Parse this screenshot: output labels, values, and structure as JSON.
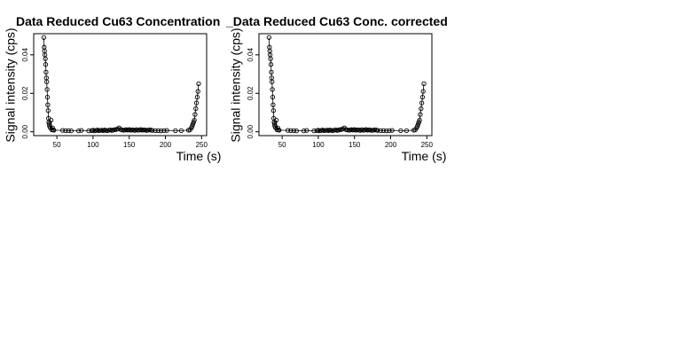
{
  "chart_data": [
    {
      "type": "scatter",
      "title": "Data Reduced Cu63 Concentration",
      "xlabel": "Time (s)",
      "ylabel": "Signal intensity (cps)",
      "xticks": [
        50,
        100,
        150,
        200,
        250
      ],
      "yticks": [
        0.0,
        0.02,
        0.04
      ],
      "ytick_labels": [
        "0.00",
        "0.02",
        "0.04"
      ],
      "xlim": [
        18,
        257
      ],
      "ylim": [
        -0.002,
        0.051
      ],
      "grid": false,
      "legend": "none",
      "x": [
        32,
        32.5,
        33,
        33.5,
        34,
        34.5,
        35,
        35.5,
        36,
        36.5,
        37,
        37.5,
        38,
        38.5,
        39,
        39.5,
        40,
        41,
        42,
        43,
        44,
        45,
        46,
        58,
        62,
        66,
        70,
        80,
        84,
        94,
        98,
        100,
        102,
        104,
        106,
        108,
        110,
        112,
        114,
        116,
        118,
        120,
        122,
        124,
        126,
        128,
        130,
        132,
        134,
        136,
        138,
        140,
        142,
        144,
        146,
        148,
        150,
        152,
        154,
        156,
        158,
        160,
        162,
        164,
        166,
        168,
        170,
        172,
        174,
        176,
        178,
        180,
        182,
        186,
        190,
        194,
        198,
        202,
        214,
        222,
        232,
        234,
        236,
        237,
        238,
        239,
        240,
        241,
        242,
        243,
        244,
        245,
        246
      ],
      "y": [
        0.049,
        0.044,
        0.042,
        0.04,
        0.038,
        0.035,
        0.031,
        0.028,
        0.026,
        0.022,
        0.018,
        0.014,
        0.011,
        0.007,
        0.005,
        0.004,
        0.003,
        0.002,
        0.006,
        0.001,
        0.002,
        0.001,
        0.0008,
        0.0007,
        0.0006,
        0.0006,
        0.0005,
        0.0005,
        0.0007,
        0.0005,
        0.0006,
        0.0008,
        0.0005,
        0.0007,
        0.0009,
        0.0006,
        0.0007,
        0.0008,
        0.0006,
        0.0009,
        0.0007,
        0.0006,
        0.0008,
        0.001,
        0.0007,
        0.0009,
        0.0011,
        0.0012,
        0.0015,
        0.002,
        0.0012,
        0.001,
        0.0008,
        0.0009,
        0.0011,
        0.0009,
        0.0012,
        0.0008,
        0.001,
        0.0009,
        0.0007,
        0.0011,
        0.0008,
        0.0009,
        0.0012,
        0.0008,
        0.001,
        0.0009,
        0.0007,
        0.0008,
        0.001,
        0.0009,
        0.0007,
        0.0006,
        0.0006,
        0.0005,
        0.0006,
        0.0007,
        0.0006,
        0.0006,
        0.0008,
        0.001,
        0.002,
        0.003,
        0.004,
        0.005,
        0.006,
        0.009,
        0.012,
        0.015,
        0.018,
        0.021,
        0.025
      ]
    },
    {
      "type": "scatter",
      "title": "_Data Reduced Cu63 Conc. corrected",
      "xlabel": "Time (s)",
      "ylabel": "Signal intensity (cps)",
      "xticks": [
        50,
        100,
        150,
        200,
        250
      ],
      "yticks": [
        0.0,
        0.02,
        0.04
      ],
      "ytick_labels": [
        "0.00",
        "0.02",
        "0.04"
      ],
      "xlim": [
        18,
        257
      ],
      "ylim": [
        -0.002,
        0.051
      ],
      "grid": false,
      "legend": "none",
      "x": [
        32,
        32.5,
        33,
        33.5,
        34,
        34.5,
        35,
        35.5,
        36,
        36.5,
        37,
        37.5,
        38,
        38.5,
        39,
        39.5,
        40,
        41,
        42,
        43,
        44,
        45,
        46,
        58,
        62,
        66,
        70,
        80,
        84,
        94,
        98,
        100,
        102,
        104,
        106,
        108,
        110,
        112,
        114,
        116,
        118,
        120,
        122,
        124,
        126,
        128,
        130,
        132,
        134,
        136,
        138,
        140,
        142,
        144,
        146,
        148,
        150,
        152,
        154,
        156,
        158,
        160,
        162,
        164,
        166,
        168,
        170,
        172,
        174,
        176,
        178,
        180,
        182,
        186,
        190,
        194,
        198,
        202,
        214,
        222,
        232,
        234,
        236,
        237,
        238,
        239,
        240,
        241,
        242,
        243,
        244,
        245,
        246
      ],
      "y": [
        0.049,
        0.044,
        0.042,
        0.04,
        0.038,
        0.035,
        0.031,
        0.028,
        0.026,
        0.022,
        0.018,
        0.014,
        0.011,
        0.007,
        0.005,
        0.004,
        0.003,
        0.002,
        0.006,
        0.001,
        0.002,
        0.001,
        0.0008,
        0.0007,
        0.0006,
        0.0006,
        0.0005,
        0.0005,
        0.0007,
        0.0005,
        0.0006,
        0.0008,
        0.0005,
        0.0007,
        0.0009,
        0.0006,
        0.0007,
        0.0008,
        0.0006,
        0.0009,
        0.0007,
        0.0006,
        0.0008,
        0.001,
        0.0007,
        0.0009,
        0.0011,
        0.0012,
        0.0015,
        0.002,
        0.0012,
        0.001,
        0.0008,
        0.0009,
        0.0011,
        0.0009,
        0.0012,
        0.0008,
        0.001,
        0.0009,
        0.0007,
        0.0011,
        0.0008,
        0.0009,
        0.0012,
        0.0008,
        0.001,
        0.0009,
        0.0007,
        0.0008,
        0.001,
        0.0009,
        0.0007,
        0.0006,
        0.0006,
        0.0005,
        0.0006,
        0.0007,
        0.0006,
        0.0006,
        0.0008,
        0.001,
        0.002,
        0.003,
        0.004,
        0.005,
        0.006,
        0.009,
        0.012,
        0.015,
        0.018,
        0.021,
        0.025
      ]
    }
  ]
}
